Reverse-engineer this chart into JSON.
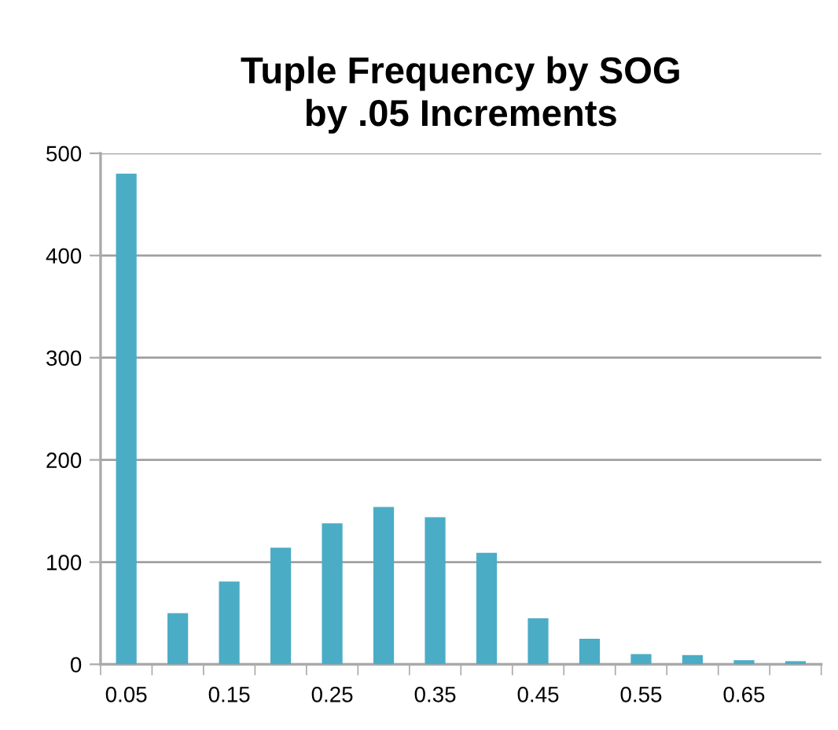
{
  "chart_data": {
    "type": "bar",
    "title": "Tuple Frequency by SOG\nby .05 Increments",
    "categories": [
      "0.05",
      null,
      "0.15",
      null,
      "0.25",
      null,
      "0.35",
      null,
      "0.45",
      null,
      "0.55",
      null,
      "0.65",
      null
    ],
    "values": [
      480,
      50,
      81,
      114,
      138,
      154,
      144,
      109,
      45,
      25,
      10,
      9,
      4,
      3
    ],
    "color": "#4bacc6",
    "ylim": [
      0,
      500
    ],
    "yticks": [
      0,
      100,
      200,
      300,
      400,
      500
    ],
    "grid": "y"
  }
}
